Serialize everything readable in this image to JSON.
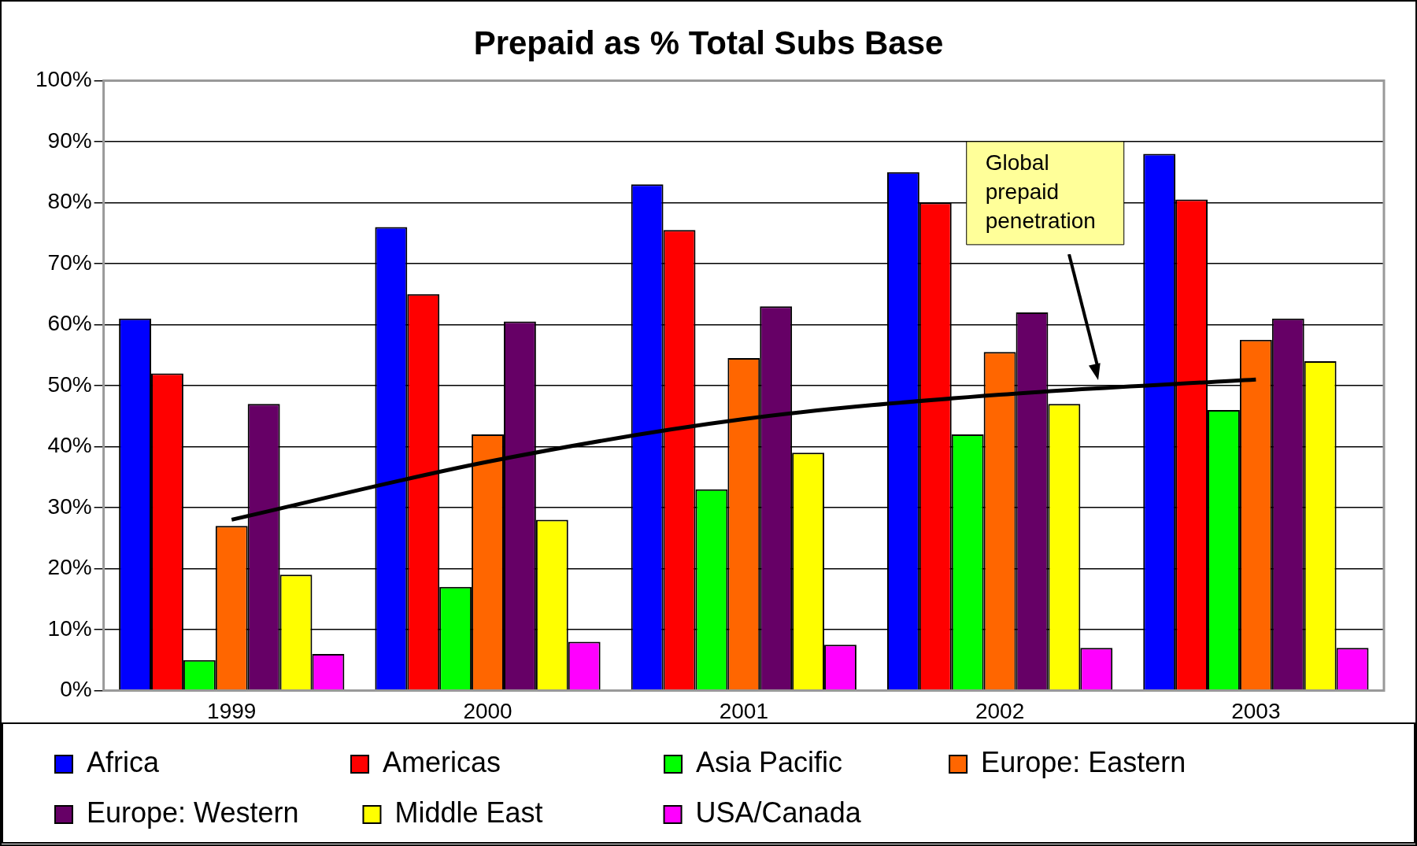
{
  "chart_data": {
    "type": "bar",
    "title": "Prepaid as % Total Subs Base",
    "categories": [
      "1999",
      "2000",
      "2001",
      "2002",
      "2003"
    ],
    "series": [
      {
        "name": "Africa",
        "color": "#0000ff",
        "values": [
          61,
          76,
          83,
          85,
          88
        ]
      },
      {
        "name": "Americas",
        "color": "#ff0000",
        "values": [
          52,
          65,
          75.5,
          80,
          80.5
        ]
      },
      {
        "name": "Asia Pacific",
        "color": "#00ff00",
        "values": [
          5,
          17,
          33,
          42,
          46
        ]
      },
      {
        "name": "Europe: Eastern",
        "color": "#ff6600",
        "values": [
          27,
          42,
          54.5,
          55.5,
          57.5
        ]
      },
      {
        "name": "Europe: Western",
        "color": "#660066",
        "values": [
          47,
          60.5,
          63,
          62,
          61
        ]
      },
      {
        "name": "Middle East",
        "color": "#ffff00",
        "values": [
          19,
          28,
          39,
          47,
          54
        ]
      },
      {
        "name": "USA/Canada",
        "color": "#ff00ff",
        "values": [
          6,
          8,
          7.5,
          7,
          7
        ]
      },
      {
        "type": "line",
        "color": "#000000",
        "values": [
          28,
          37.5,
          44.5,
          48.5,
          51
        ]
      }
    ],
    "ylim": [
      0,
      100
    ],
    "yticks": [
      {
        "value": 0,
        "label": "0%"
      },
      {
        "value": 10,
        "label": "10%"
      },
      {
        "value": 20,
        "label": "20%"
      },
      {
        "value": 30,
        "label": "30%"
      },
      {
        "value": 40,
        "label": "40%"
      },
      {
        "value": 50,
        "label": "50%"
      },
      {
        "value": 60,
        "label": "60%"
      },
      {
        "value": 70,
        "label": "70%"
      },
      {
        "value": 80,
        "label": "80%"
      },
      {
        "value": 90,
        "label": "90%"
      },
      {
        "value": 100,
        "label": "100%"
      }
    ],
    "grid": "y",
    "legend": "bottom",
    "marker": "none",
    "line_style": "solid",
    "annotations": [
      "Global prepaid penetration"
    ]
  }
}
